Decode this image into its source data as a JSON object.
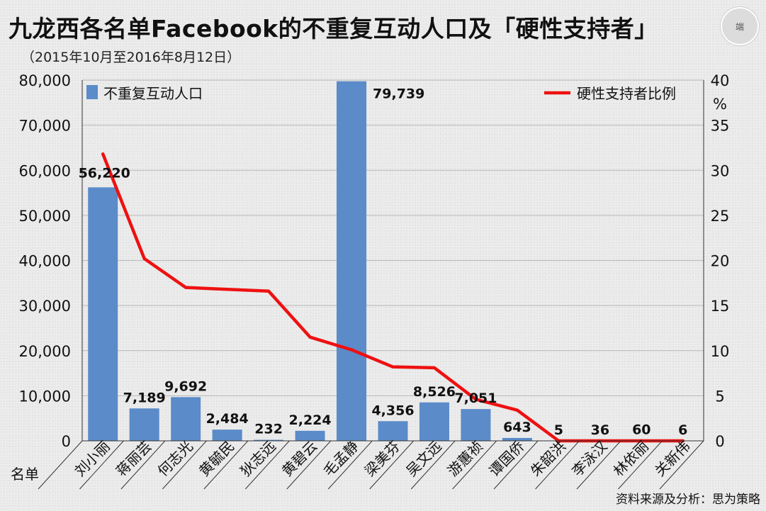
{
  "title": "九龙西各名单Facebook的不重复互动人口及「硬性支持者」",
  "subtitle": "（2015年10月至2016年8月12日）",
  "source": "资料来源及分析：思为策略",
  "logo_text": "端",
  "colors": {
    "bar": "#5b8bc9",
    "line": "#ee1111",
    "grid": "#b8b8b8",
    "axis": "#333333"
  },
  "chart_data": {
    "type": "bar",
    "categories": [
      "刘小丽",
      "蒋丽芸",
      "何志光",
      "黄毓民",
      "狄志远",
      "黄碧云",
      "毛孟静",
      "梁美芬",
      "吴文远",
      "游蕙祯",
      "谭国侨",
      "朱韶洪",
      "李泳汉",
      "林依丽",
      "关新伟"
    ],
    "category_axis_label": "名单",
    "series": [
      {
        "name": "不重复互动人口",
        "type": "bar",
        "axis": "left",
        "values": [
          56220,
          7189,
          9692,
          2484,
          232,
          2224,
          79739,
          4356,
          8526,
          7051,
          643,
          5,
          36,
          60,
          6
        ],
        "labels": [
          "56,220",
          "7,189",
          "9,692",
          "2,484",
          "232",
          "2,224",
          "79,739",
          "4,356",
          "8,526",
          "7,051",
          "643",
          "5",
          "36",
          "60",
          "6"
        ]
      },
      {
        "name": "硬性支持者比例",
        "type": "line",
        "axis": "right",
        "values": [
          31.8,
          20.2,
          17.0,
          16.8,
          16.6,
          11.5,
          10.1,
          8.2,
          8.1,
          4.6,
          3.4,
          0,
          0,
          0,
          0
        ]
      }
    ],
    "left_axis": {
      "ylim": [
        0,
        80000
      ],
      "ticks": [
        "0",
        "10,000",
        "20,000",
        "30,000",
        "40,000",
        "50,000",
        "60,000",
        "70,000",
        "80,000"
      ]
    },
    "right_axis": {
      "ylim": [
        0,
        40
      ],
      "unit": "%",
      "ticks": [
        "0",
        "5",
        "10",
        "15",
        "20",
        "25",
        "30",
        "35",
        "40"
      ]
    },
    "grid": true,
    "legend": {
      "bar": "top-left",
      "line": "top-right"
    }
  }
}
